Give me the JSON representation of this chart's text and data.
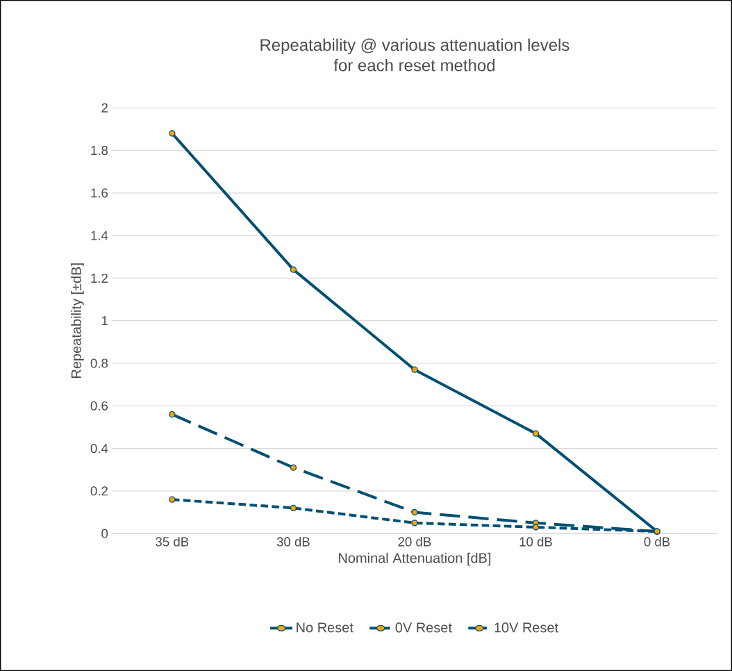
{
  "chart_data": {
    "type": "line",
    "title": "Repeatability @ various attenuation levels\nfor each reset method",
    "xlabel": "Nominal Attenuation [dB]",
    "ylabel": "Repeatability [±dB]",
    "categories": [
      "35 dB",
      "30 dB",
      "20 dB",
      "10 dB",
      "0 dB"
    ],
    "series": [
      {
        "name": "No Reset",
        "color": "#005073",
        "line_style": "solid",
        "values": [
          1.88,
          1.24,
          0.77,
          0.47,
          0.01
        ]
      },
      {
        "name": "0V Reset",
        "color": "#005073",
        "line_style": "dashed",
        "values": [
          0.56,
          0.31,
          0.1,
          0.05,
          0.01
        ]
      },
      {
        "name": "10V Reset",
        "color": "#005073",
        "line_style": "dotted",
        "values": [
          0.16,
          0.12,
          0.05,
          0.03,
          0.01
        ]
      }
    ],
    "ylim": [
      0,
      2
    ],
    "yticks": [
      0,
      0.2,
      0.4,
      0.6,
      0.8,
      1,
      1.2,
      1.4,
      1.6,
      1.8,
      2
    ],
    "grid": "y",
    "legend": "bottom",
    "marker": "circle"
  }
}
